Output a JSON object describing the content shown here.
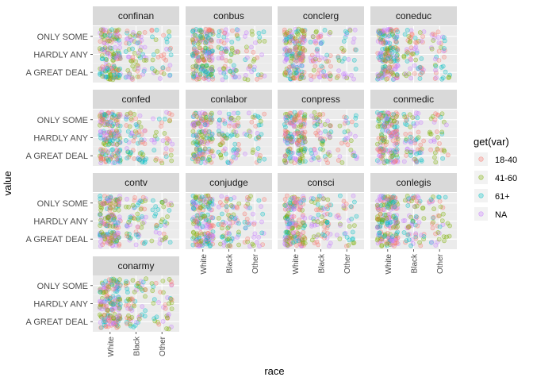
{
  "chart_data": {
    "type": "scatter",
    "subtype": "jittered faceted point plot",
    "xlabel": "race",
    "ylabel": "value",
    "x_categories": [
      "White",
      "Black",
      "Other"
    ],
    "y_categories": [
      "A GREAT DEAL",
      "HARDLY ANY",
      "ONLY SOME"
    ],
    "facets": [
      "confinan",
      "conbus",
      "conclerg",
      "coneduc",
      "confed",
      "conlabor",
      "conpress",
      "conmedic",
      "contv",
      "conjudge",
      "consci",
      "conlegis",
      "conarmy"
    ],
    "legend": {
      "title": "get(var)",
      "placement": "right",
      "entries": [
        {
          "label": "18-40",
          "color": "#F8766D"
        },
        {
          "label": "41-60",
          "color": "#7CAE00"
        },
        {
          "label": "61+",
          "color": "#00BFC4"
        },
        {
          "label": "NA",
          "color": "#C77CFF"
        }
      ]
    },
    "point_alpha": 0.25,
    "grid": true,
    "relative_density_by_race": {
      "White": 1.0,
      "Black": 0.35,
      "Other": 0.2
    }
  }
}
